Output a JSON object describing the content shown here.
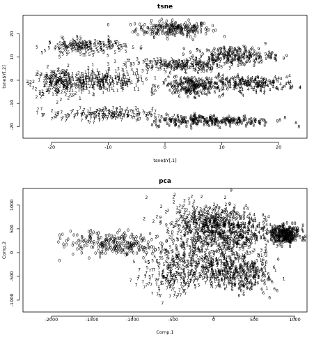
{
  "chart_data": [
    {
      "type": "scatter",
      "title": "tsne",
      "xlabel": "tsne$Y[,1]",
      "ylabel": "tsne$Y[,2]",
      "xlim": [
        -25,
        25
      ],
      "ylim": [
        -25,
        28
      ],
      "xticks": [
        -20,
        -10,
        0,
        10,
        20
      ],
      "yticks": [
        -20,
        -10,
        0,
        10,
        20
      ],
      "xtick_labels": [
        "-20",
        "-10",
        "0",
        "10",
        "20"
      ],
      "ytick_labels": [
        "-20",
        "-10",
        "0",
        "10",
        "20"
      ],
      "marker": "digit labels",
      "series": [
        {
          "label": "0",
          "color": "#ff0000",
          "center": [
            1.5,
            21.5
          ],
          "spread": [
            6.0,
            3.0
          ],
          "count": 220
        },
        {
          "label": "1",
          "color": "#ff00c0",
          "center": [
            -11.0,
            -1.0
          ],
          "spread": [
            7.0,
            4.0
          ],
          "count": 260
        },
        {
          "label": "2",
          "color": "#00e020",
          "center": [
            -18.5,
            -1.5
          ],
          "spread": [
            4.5,
            5.5
          ],
          "count": 200
        },
        {
          "label": "3",
          "color": "#00ddff",
          "center": [
            2.0,
            6.0
          ],
          "spread": [
            7.5,
            2.5
          ],
          "count": 210
        },
        {
          "label": "4",
          "color": "#e0ff00",
          "center": [
            15.5,
            -2.0
          ],
          "spread": [
            7.0,
            3.0
          ],
          "count": 200
        },
        {
          "label": "5",
          "color": "#1e6cff",
          "center": [
            -14.0,
            14.0
          ],
          "spread": [
            6.5,
            2.8
          ],
          "count": 180
        },
        {
          "label": "6",
          "color": "#9000ff",
          "center": [
            5.0,
            -3.0
          ],
          "spread": [
            5.0,
            4.0
          ],
          "count": 220
        },
        {
          "label": "7",
          "color": "#3010ff",
          "center": [
            -11.0,
            -15.5
          ],
          "spread": [
            8.0,
            2.5
          ],
          "count": 200
        },
        {
          "label": "8",
          "color": "#ffa000",
          "center": [
            8.0,
            -18.0
          ],
          "spread": [
            10.0,
            2.2
          ],
          "count": 230
        },
        {
          "label": "9",
          "color": "#40ff40",
          "center": [
            12.0,
            10.0
          ],
          "spread": [
            6.5,
            3.5
          ],
          "count": 200
        }
      ]
    },
    {
      "type": "scatter",
      "title": "pca",
      "xlabel": "Comp.1",
      "ylabel": "Comp.2",
      "xlim": [
        -2350,
        1150
      ],
      "ylim": [
        -1250,
        1350
      ],
      "xticks": [
        -2000,
        -1500,
        -1000,
        -500,
        0,
        500,
        1000
      ],
      "yticks": [
        -1000,
        -500,
        0,
        500,
        1000
      ],
      "xtick_labels": [
        "-2000",
        "-1500",
        "-1000",
        "-500",
        "0",
        "500",
        "1000"
      ],
      "ytick_labels": [
        "-1000",
        "-500",
        "0",
        "500",
        "1000"
      ],
      "marker": "digit labels",
      "series": [
        {
          "label": "0",
          "color": "#ff0000",
          "center": [
            -1150,
            150
          ],
          "spread": [
            600,
            230
          ],
          "count": 260
        },
        {
          "label": "1",
          "color": "#ff00c0",
          "center": [
            200,
            -300
          ],
          "spread": [
            420,
            380
          ],
          "count": 200
        },
        {
          "label": "2",
          "color": "#00e020",
          "center": [
            -200,
            650
          ],
          "spread": [
            420,
            350
          ],
          "count": 200
        },
        {
          "label": "3",
          "color": "#00ddff",
          "center": [
            100,
            150
          ],
          "spread": [
            500,
            420
          ],
          "count": 200
        },
        {
          "label": "4",
          "color": "#e0ff00",
          "center": [
            300,
            450
          ],
          "spread": [
            380,
            330
          ],
          "count": 180
        },
        {
          "label": "5",
          "color": "#1e6cff",
          "center": [
            -350,
            -250
          ],
          "spread": [
            450,
            400
          ],
          "count": 200
        },
        {
          "label": "6",
          "color": "#9000ff",
          "center": [
            350,
            -500
          ],
          "spread": [
            330,
            300
          ],
          "count": 200
        },
        {
          "label": "7",
          "color": "#3010ff",
          "center": [
            -500,
            -600
          ],
          "spread": [
            450,
            300
          ],
          "count": 150
        },
        {
          "label": "8",
          "color": "#ffa000",
          "center": [
            880,
            350
          ],
          "spread": [
            160,
            170
          ],
          "count": 260
        },
        {
          "label": "9",
          "color": "#40ff40",
          "center": [
            0,
            550
          ],
          "spread": [
            450,
            350
          ],
          "count": 200
        }
      ]
    }
  ]
}
